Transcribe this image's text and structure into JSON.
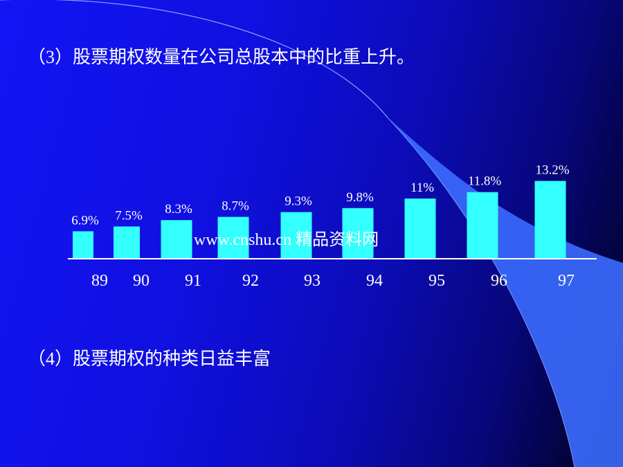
{
  "slide": {
    "heading_3": "（3）股票期权数量在公司总股本中的比重上升。",
    "heading_4": "（4）股票期权的种类日益丰富",
    "watermark": "www.cnshu.cn  精品资料网"
  },
  "colors": {
    "bar": "#33ffff",
    "background": "#1414f5",
    "accent_curve": "#3b6cff",
    "text": "#ffffff"
  },
  "chart_data": {
    "type": "bar",
    "categories": [
      "89",
      "90",
      "91",
      "92",
      "93",
      "94",
      "95",
      "96",
      "97"
    ],
    "values": [
      6.9,
      7.5,
      8.3,
      8.7,
      9.3,
      9.8,
      11,
      11.8,
      13.2
    ],
    "data_labels": [
      "6.9%",
      "7.5%",
      "8.3%",
      "8.7%",
      "9.3%",
      "9.8%",
      "11%",
      "11.8%",
      "13.2%"
    ],
    "title": "",
    "xlabel": "",
    "ylabel": "",
    "grid": false,
    "legend": "none"
  }
}
